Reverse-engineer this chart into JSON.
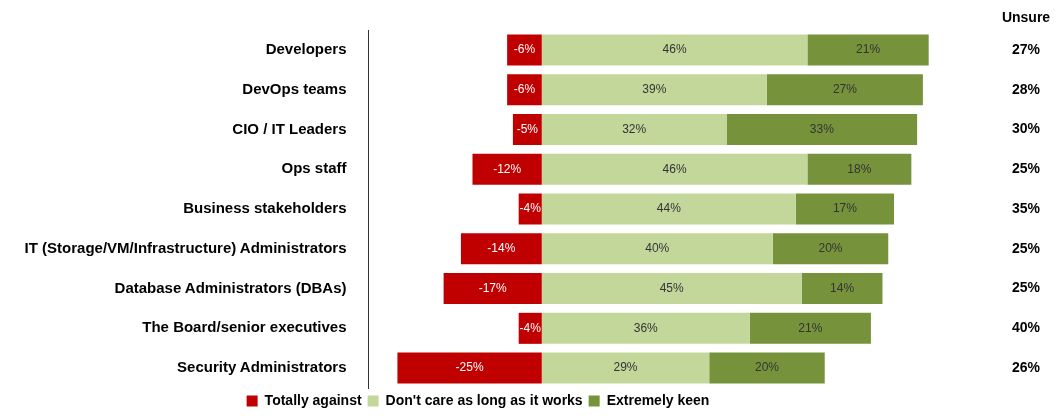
{
  "chart_data": {
    "type": "bar",
    "orientation": "horizontal",
    "stacked": true,
    "legend": "bottom",
    "grid": false,
    "tick_labels": "y",
    "categories": [
      "Developers",
      "DevOps teams",
      "CIO / IT Leaders",
      "Ops staff",
      "Business stakeholders",
      "IT (Storage/VM/Infrastructure) Administrators",
      "Database Administrators (DBAs)",
      "The Board/senior executives",
      "Security Administrators"
    ],
    "series": [
      {
        "name": "Totally against",
        "color": "#c00000",
        "values": [
          -6,
          -6,
          -5,
          -12,
          -4,
          -14,
          -17,
          -4,
          -25
        ],
        "value_labels": [
          "-6%",
          "-6%",
          "-5%",
          "-12%",
          "-4%",
          "-14%",
          "-17%",
          "-4%",
          "-25%"
        ]
      },
      {
        "name": "Don't care as long as it works",
        "color": "#c4d79b",
        "values": [
          46,
          39,
          32,
          46,
          44,
          40,
          45,
          36,
          29
        ],
        "value_labels": [
          "46%",
          "39%",
          "32%",
          "46%",
          "44%",
          "40%",
          "45%",
          "36%",
          "29%"
        ]
      },
      {
        "name": "Extremely keen",
        "color": "#76933c",
        "values": [
          21,
          27,
          33,
          18,
          17,
          20,
          14,
          21,
          20
        ],
        "value_labels": [
          "21%",
          "27%",
          "33%",
          "18%",
          "17%",
          "20%",
          "14%",
          "21%",
          "20%"
        ]
      }
    ],
    "annotations": [
      "Unsure",
      "27%",
      "28%",
      "30%",
      "25%",
      "35%",
      "25%",
      "25%",
      "40%",
      "26%"
    ]
  }
}
